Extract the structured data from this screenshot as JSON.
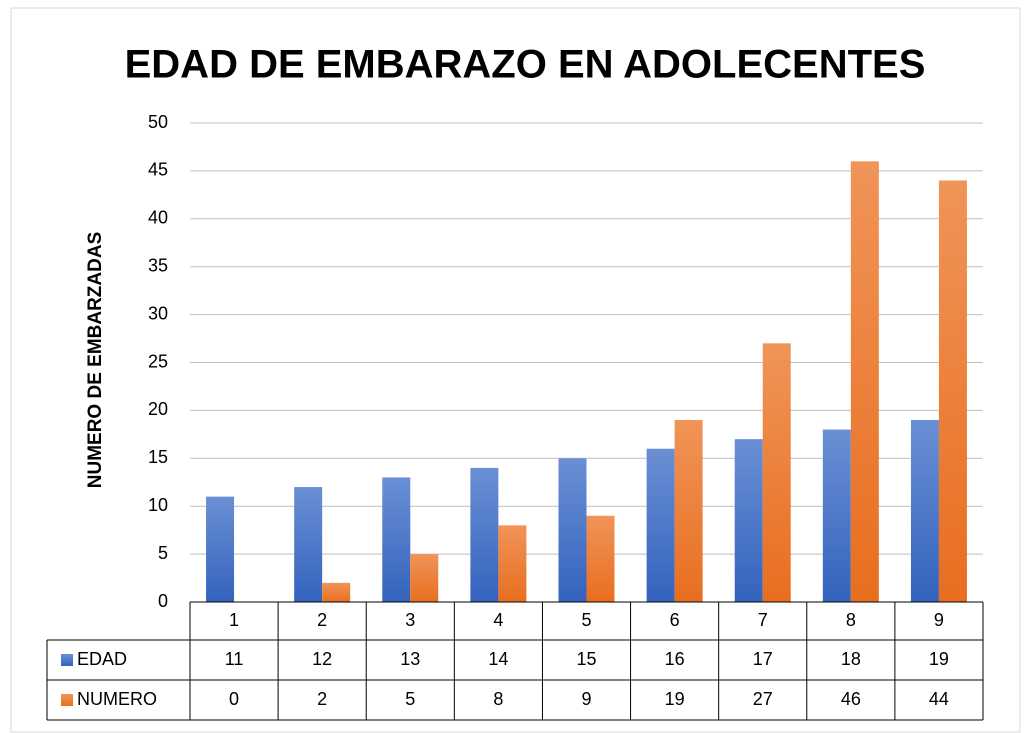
{
  "chart_data": {
    "type": "bar",
    "title": "EDAD DE EMBARAZO EN ADOLECENTES",
    "y_label": "NUMERO DE EMBARZADAS",
    "categories": [
      1,
      2,
      3,
      4,
      5,
      6,
      7,
      8,
      9
    ],
    "series": [
      {
        "name": "EDAD",
        "color": "#4472c4",
        "values": [
          11,
          12,
          13,
          14,
          15,
          16,
          17,
          18,
          19
        ]
      },
      {
        "name": "NUMERO",
        "color": "#ed7d31",
        "values": [
          0,
          2,
          5,
          8,
          9,
          19,
          27,
          46,
          44
        ]
      }
    ],
    "ylim": [
      0,
      50
    ],
    "yticks": [
      0,
      5,
      10,
      15,
      20,
      25,
      30,
      35,
      40,
      45,
      50
    ],
    "grid": true,
    "data_table": true
  }
}
